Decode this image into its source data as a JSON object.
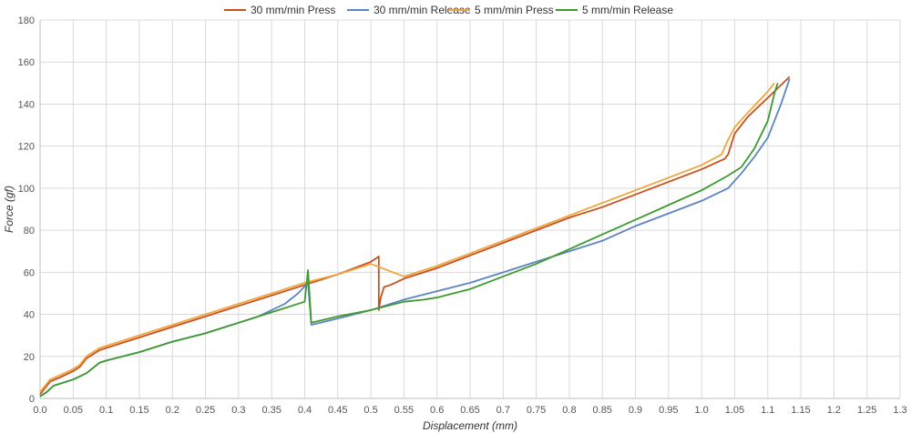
{
  "chart_data": {
    "type": "line",
    "xlabel": "Displacement (mm)",
    "ylabel": "Force (gf)",
    "xlim": [
      0,
      1.3
    ],
    "ylim": [
      0,
      180
    ],
    "x_ticks": [
      "0.0",
      "0.05",
      "0.1",
      "0.15",
      "0.2",
      "0.25",
      "0.3",
      "0.35",
      "0.4",
      "0.45",
      "0.5",
      "0.55",
      "0.6",
      "0.65",
      "0.7",
      "0.75",
      "0.8",
      "0.85",
      "0.9",
      "0.95",
      "1.0",
      "1.05",
      "1.1",
      "1.15",
      "1.2",
      "1.25",
      "1.3"
    ],
    "y_ticks": [
      "0",
      "20",
      "40",
      "60",
      "80",
      "100",
      "120",
      "140",
      "160",
      "180"
    ],
    "grid": true,
    "legend_position": "top",
    "series": [
      {
        "name": "30 mm/min Press",
        "color": "#c8501e",
        "points": [
          [
            0,
            2
          ],
          [
            0.005,
            4
          ],
          [
            0.015,
            8
          ],
          [
            0.03,
            10
          ],
          [
            0.05,
            13
          ],
          [
            0.06,
            15
          ],
          [
            0.07,
            19
          ],
          [
            0.09,
            23
          ],
          [
            0.1,
            24
          ],
          [
            0.15,
            29
          ],
          [
            0.2,
            34
          ],
          [
            0.25,
            39
          ],
          [
            0.3,
            44
          ],
          [
            0.35,
            49
          ],
          [
            0.4,
            54
          ],
          [
            0.45,
            59
          ],
          [
            0.5,
            65
          ],
          [
            0.512,
            67.5
          ],
          [
            0.512,
            42
          ],
          [
            0.515,
            48
          ],
          [
            0.52,
            53
          ],
          [
            0.53,
            54
          ],
          [
            0.55,
            57
          ],
          [
            0.6,
            62
          ],
          [
            0.65,
            68
          ],
          [
            0.7,
            74
          ],
          [
            0.75,
            80
          ],
          [
            0.8,
            86
          ],
          [
            0.85,
            91
          ],
          [
            0.9,
            97
          ],
          [
            0.95,
            103
          ],
          [
            1.0,
            109
          ],
          [
            1.035,
            114
          ],
          [
            1.04,
            116
          ],
          [
            1.05,
            126
          ],
          [
            1.07,
            134
          ],
          [
            1.1,
            143
          ],
          [
            1.133,
            153
          ]
        ]
      },
      {
        "name": "30 mm/min Release",
        "color": "#5b84c4",
        "points": [
          [
            0,
            1
          ],
          [
            0.01,
            3
          ],
          [
            0.02,
            6
          ],
          [
            0.05,
            9
          ],
          [
            0.07,
            12
          ],
          [
            0.09,
            17
          ],
          [
            0.1,
            18
          ],
          [
            0.15,
            22
          ],
          [
            0.2,
            27
          ],
          [
            0.25,
            31
          ],
          [
            0.3,
            36
          ],
          [
            0.33,
            39
          ],
          [
            0.35,
            42
          ],
          [
            0.37,
            45
          ],
          [
            0.39,
            50
          ],
          [
            0.405,
            55
          ],
          [
            0.41,
            35
          ],
          [
            0.45,
            38
          ],
          [
            0.5,
            42
          ],
          [
            0.55,
            47
          ],
          [
            0.6,
            51
          ],
          [
            0.65,
            55
          ],
          [
            0.7,
            60
          ],
          [
            0.75,
            65
          ],
          [
            0.8,
            70
          ],
          [
            0.85,
            75
          ],
          [
            0.9,
            82
          ],
          [
            0.95,
            88
          ],
          [
            1.0,
            94
          ],
          [
            1.04,
            100
          ],
          [
            1.06,
            107
          ],
          [
            1.08,
            115
          ],
          [
            1.1,
            124
          ],
          [
            1.12,
            140
          ],
          [
            1.133,
            152
          ]
        ]
      },
      {
        "name": "5 mm/min Press",
        "color": "#f0a53a",
        "points": [
          [
            0,
            3
          ],
          [
            0.005,
            5
          ],
          [
            0.015,
            9
          ],
          [
            0.03,
            11
          ],
          [
            0.05,
            14
          ],
          [
            0.06,
            16
          ],
          [
            0.07,
            20
          ],
          [
            0.09,
            24
          ],
          [
            0.1,
            25
          ],
          [
            0.15,
            30
          ],
          [
            0.2,
            35
          ],
          [
            0.25,
            40
          ],
          [
            0.3,
            45
          ],
          [
            0.35,
            50
          ],
          [
            0.4,
            55
          ],
          [
            0.45,
            59
          ],
          [
            0.48,
            62
          ],
          [
            0.5,
            64
          ],
          [
            0.55,
            58
          ],
          [
            0.6,
            63
          ],
          [
            0.65,
            69
          ],
          [
            0.7,
            75
          ],
          [
            0.75,
            81
          ],
          [
            0.8,
            87
          ],
          [
            0.85,
            93
          ],
          [
            0.9,
            99
          ],
          [
            0.95,
            105
          ],
          [
            1.0,
            111
          ],
          [
            1.03,
            116
          ],
          [
            1.04,
            123
          ],
          [
            1.05,
            129
          ],
          [
            1.07,
            136
          ],
          [
            1.1,
            146
          ],
          [
            1.11,
            150
          ]
        ]
      },
      {
        "name": "5 mm/min Release",
        "color": "#3e9a2e",
        "points": [
          [
            0,
            1
          ],
          [
            0.01,
            3
          ],
          [
            0.02,
            6
          ],
          [
            0.05,
            9
          ],
          [
            0.07,
            12
          ],
          [
            0.09,
            17
          ],
          [
            0.1,
            18
          ],
          [
            0.15,
            22
          ],
          [
            0.2,
            27
          ],
          [
            0.25,
            31
          ],
          [
            0.3,
            36
          ],
          [
            0.35,
            41
          ],
          [
            0.4,
            46
          ],
          [
            0.405,
            61
          ],
          [
            0.41,
            36
          ],
          [
            0.45,
            39
          ],
          [
            0.5,
            42
          ],
          [
            0.55,
            46
          ],
          [
            0.58,
            47
          ],
          [
            0.6,
            48
          ],
          [
            0.65,
            52
          ],
          [
            0.7,
            58
          ],
          [
            0.75,
            64
          ],
          [
            0.8,
            71
          ],
          [
            0.85,
            78
          ],
          [
            0.9,
            85
          ],
          [
            0.95,
            92
          ],
          [
            1.0,
            99
          ],
          [
            1.04,
            106
          ],
          [
            1.06,
            110
          ],
          [
            1.08,
            119
          ],
          [
            1.1,
            132
          ],
          [
            1.11,
            145
          ],
          [
            1.115,
            150
          ]
        ]
      }
    ]
  }
}
